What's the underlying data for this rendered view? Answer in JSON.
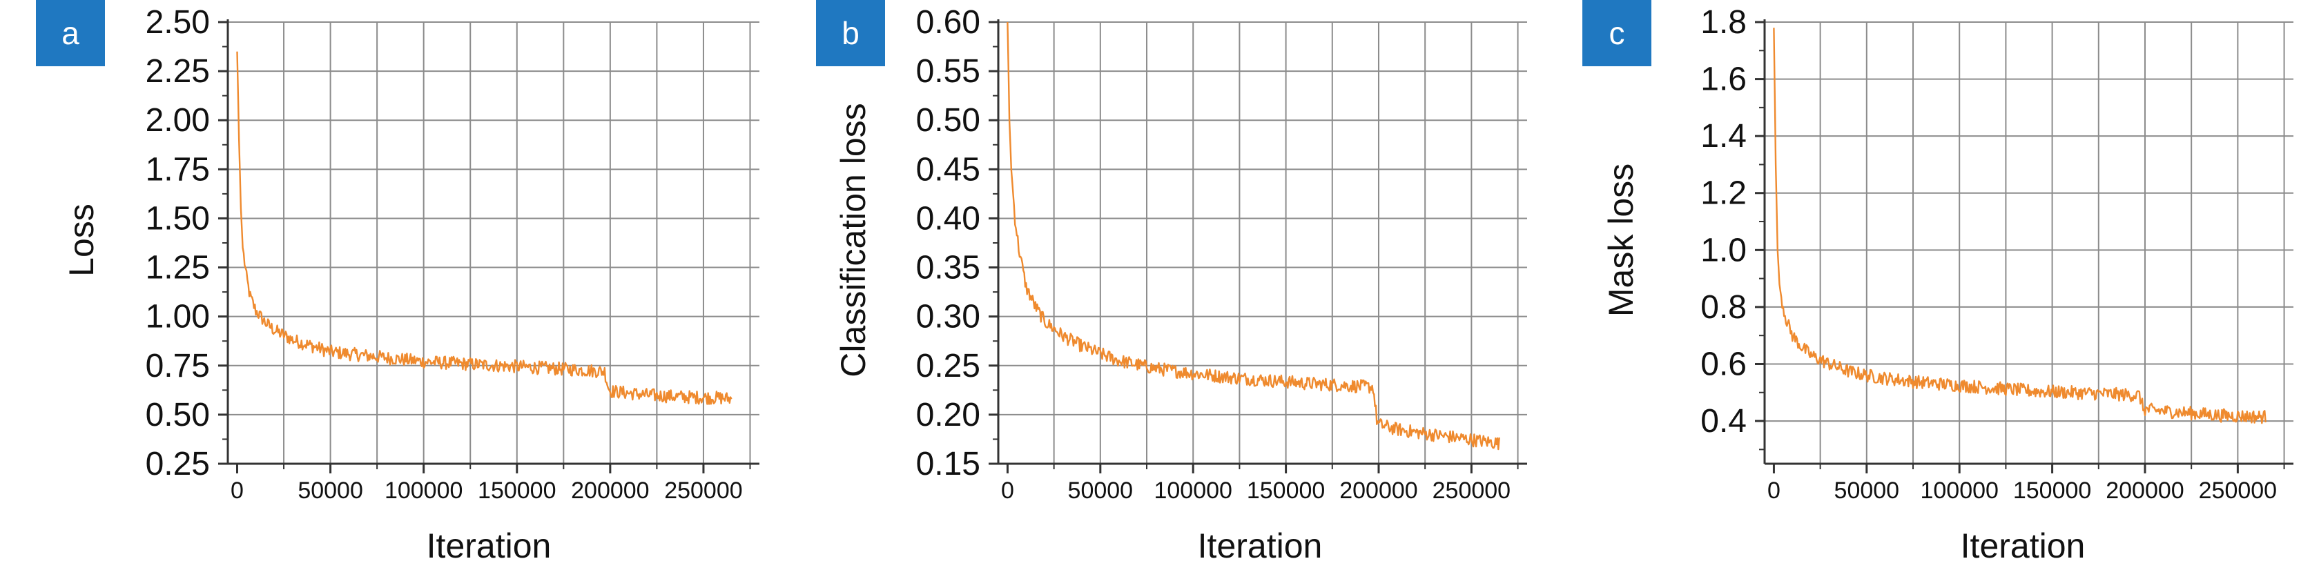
{
  "figure": {
    "panels": [
      {
        "letter": "a",
        "ylabel": "Loss",
        "xlabel": "Iteration"
      },
      {
        "letter": "b",
        "ylabel": "Classification loss",
        "xlabel": "Iteration"
      },
      {
        "letter": "c",
        "ylabel": "Mask loss",
        "xlabel": "Iteration"
      }
    ],
    "colors": {
      "badge": "#1f78c1",
      "series": "#ef8a2e",
      "grid": "#8c8c8c",
      "axis": "#333333"
    }
  },
  "chart_data": [
    {
      "type": "line",
      "title": "",
      "xlabel": "Iteration",
      "ylabel": "Loss",
      "xlim": [
        -5000,
        280000
      ],
      "ylim": [
        0.25,
        2.5
      ],
      "xticks": [
        0,
        50000,
        100000,
        150000,
        200000,
        250000
      ],
      "yticks": [
        "0.25",
        "0.50",
        "0.75",
        "1.00",
        "1.25",
        "1.50",
        "1.75",
        "2.00",
        "2.25",
        "2.50"
      ],
      "grid": true,
      "series": [
        {
          "x": [
            0,
            1000,
            2000,
            3000,
            5000,
            7000,
            10000,
            15000,
            20000,
            30000,
            40000,
            50000,
            60000,
            80000,
            100000,
            120000,
            140000,
            160000,
            180000,
            197000,
            199000,
            200000,
            210000,
            220000,
            240000,
            260000,
            265000
          ],
          "y": [
            2.35,
            1.9,
            1.55,
            1.35,
            1.2,
            1.1,
            1.03,
            0.97,
            0.93,
            0.88,
            0.85,
            0.82,
            0.81,
            0.79,
            0.77,
            0.76,
            0.75,
            0.74,
            0.73,
            0.72,
            0.64,
            0.62,
            0.61,
            0.6,
            0.59,
            0.585,
            0.58
          ]
        }
      ]
    },
    {
      "type": "line",
      "title": "",
      "xlabel": "Iteration",
      "ylabel": "Classification loss",
      "xlim": [
        -5000,
        280000
      ],
      "ylim": [
        0.15,
        0.6
      ],
      "xticks": [
        0,
        50000,
        100000,
        150000,
        200000,
        250000
      ],
      "yticks": [
        "0.15",
        "0.20",
        "0.25",
        "0.30",
        "0.35",
        "0.40",
        "0.45",
        "0.50",
        "0.55",
        "0.60"
      ],
      "grid": true,
      "series": [
        {
          "x": [
            0,
            1000,
            2000,
            4000,
            6000,
            8000,
            10000,
            15000,
            20000,
            30000,
            40000,
            50000,
            60000,
            80000,
            100000,
            120000,
            140000,
            160000,
            180000,
            197000,
            199000,
            200000,
            210000,
            220000,
            240000,
            260000,
            265000
          ],
          "y": [
            0.6,
            0.5,
            0.45,
            0.4,
            0.37,
            0.35,
            0.33,
            0.31,
            0.295,
            0.28,
            0.27,
            0.262,
            0.255,
            0.247,
            0.242,
            0.238,
            0.235,
            0.232,
            0.23,
            0.228,
            0.195,
            0.19,
            0.185,
            0.182,
            0.177,
            0.172,
            0.171
          ]
        }
      ]
    },
    {
      "type": "line",
      "title": "",
      "xlabel": "Iteration",
      "ylabel": "Mask loss",
      "xlim": [
        -5000,
        280000
      ],
      "ylim": [
        0.25,
        1.8
      ],
      "xticks": [
        0,
        50000,
        100000,
        150000,
        200000,
        250000
      ],
      "yticks": [
        "0.4",
        "0.6",
        "0.8",
        "1.0",
        "1.2",
        "1.4",
        "1.6",
        "1.8"
      ],
      "grid": true,
      "series": [
        {
          "x": [
            0,
            1000,
            2000,
            3000,
            5000,
            7000,
            10000,
            15000,
            20000,
            30000,
            40000,
            50000,
            60000,
            80000,
            100000,
            120000,
            140000,
            160000,
            180000,
            197000,
            199000,
            200000,
            210000,
            220000,
            240000,
            260000,
            265000
          ],
          "y": [
            1.78,
            1.3,
            1.0,
            0.88,
            0.8,
            0.75,
            0.7,
            0.66,
            0.63,
            0.6,
            0.575,
            0.56,
            0.55,
            0.535,
            0.525,
            0.515,
            0.505,
            0.5,
            0.495,
            0.49,
            0.445,
            0.44,
            0.435,
            0.43,
            0.42,
            0.415,
            0.415
          ]
        }
      ]
    }
  ]
}
